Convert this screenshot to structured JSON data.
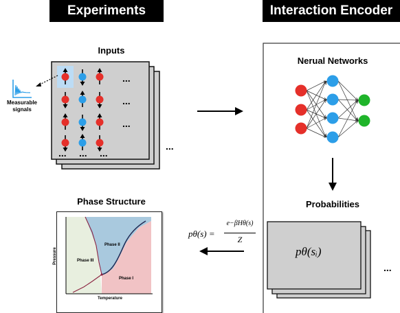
{
  "left_panel": {
    "header": "Experiments",
    "inputs_title": "Inputs",
    "signal_label_line1": "Measurable",
    "signal_label_line2": "signals",
    "ellipsis": "...",
    "phase_title": "Phase Structure",
    "phase_chart": {
      "xlabel": "Temperature",
      "ylabel": "Pressure",
      "regions": [
        {
          "label": "Phase I",
          "color": "#f1c3c5"
        },
        {
          "label": "Phase II",
          "color": "#a9c9de"
        },
        {
          "label": "Phase III",
          "color": "#e8efdf"
        }
      ]
    }
  },
  "right_panel": {
    "header": "Interaction Encoder",
    "nn_title": "Nerual Networks",
    "prob_title": "Probabilities",
    "prob_formula": "pθ(sᵢ)",
    "ellipsis": "..."
  },
  "middle": {
    "formula_lhs": "pθ(s) =",
    "formula_num": "e−βHθ(s)",
    "formula_den": "Z"
  },
  "colors": {
    "spin_red": "#e5302a",
    "spin_blue": "#2c9ee8",
    "nn_green": "#1fb42a",
    "card_gray": "#cfcfcf"
  }
}
